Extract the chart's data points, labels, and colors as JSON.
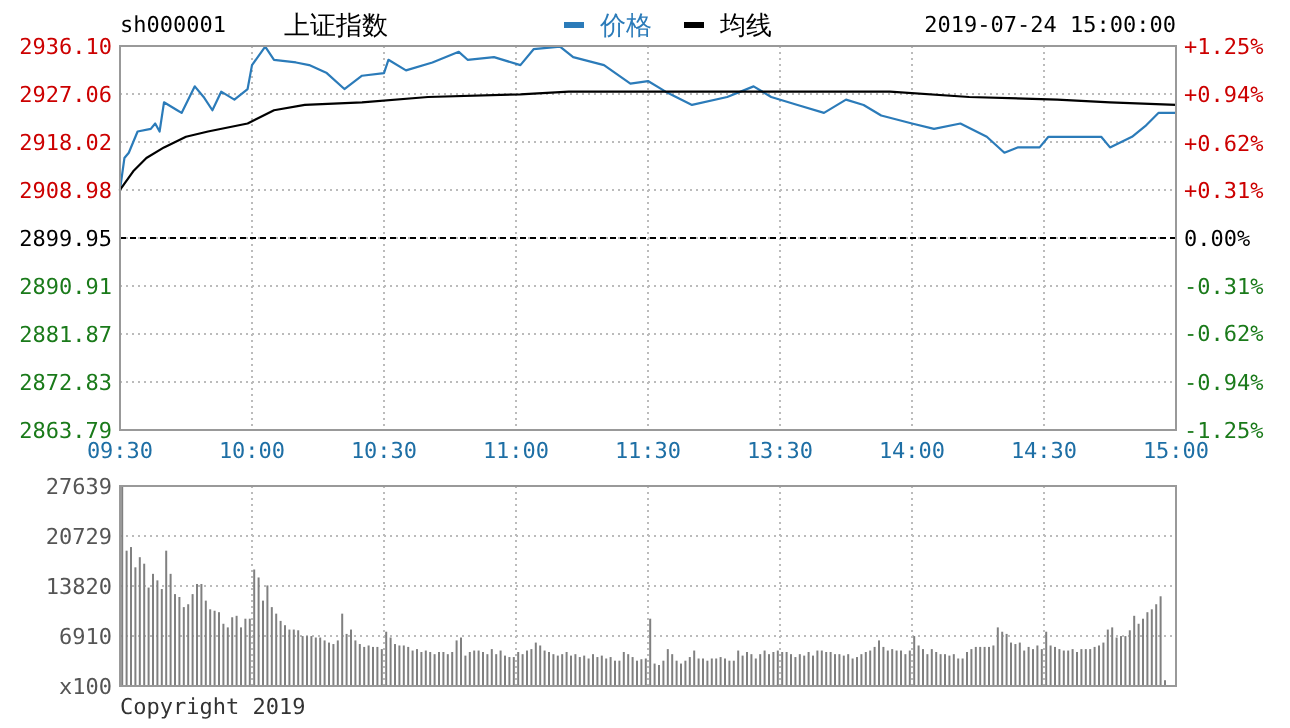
{
  "chart_data": [
    {
      "type": "line",
      "title": "上证指数",
      "subtitle": "sh000001",
      "annotations": [
        "2019-07-24 15:00:00"
      ],
      "categories": [
        "09:30",
        null,
        null,
        null,
        null,
        null,
        null,
        null,
        null,
        null,
        null,
        null,
        null,
        null,
        null,
        null,
        null,
        null,
        null,
        null,
        null,
        null,
        null,
        null,
        null,
        null,
        null,
        null,
        null,
        null,
        "10:00",
        null,
        null,
        null,
        null,
        null,
        null,
        null,
        null,
        null,
        null,
        null,
        null,
        null,
        null,
        null,
        null,
        null,
        null,
        null,
        null,
        null,
        null,
        null,
        null,
        null,
        null,
        null,
        null,
        null,
        "10:30",
        null,
        null,
        null,
        null,
        null,
        null,
        null,
        null,
        null,
        null,
        null,
        null,
        null,
        null,
        null,
        null,
        null,
        null,
        null,
        null,
        null,
        null,
        null,
        null,
        null,
        null,
        null,
        null,
        null,
        "11:00",
        null,
        null,
        null,
        null,
        null,
        null,
        null,
        null,
        null,
        null,
        null,
        null,
        null,
        null,
        null,
        null,
        null,
        null,
        null,
        null,
        null,
        null,
        null,
        null,
        null,
        null,
        null,
        null,
        null,
        "11:30",
        null,
        null,
        null,
        null,
        null,
        null,
        null,
        null,
        null,
        null,
        null,
        null,
        null,
        null,
        null,
        null,
        null,
        null,
        null,
        null,
        null,
        null,
        null,
        null,
        null,
        null,
        null,
        null,
        null,
        "13:30",
        null,
        null,
        null,
        null,
        null,
        null,
        null,
        null,
        null,
        null,
        null,
        null,
        null,
        null,
        null,
        null,
        null,
        null,
        null,
        null,
        null,
        null,
        null,
        null,
        null,
        null,
        null,
        null,
        null,
        "14:00",
        null,
        null,
        null,
        null,
        null,
        null,
        null,
        null,
        null,
        null,
        null,
        null,
        null,
        null,
        null,
        null,
        null,
        null,
        null,
        null,
        null,
        null,
        null,
        null,
        null,
        null,
        null,
        null,
        null,
        "14:30",
        null,
        null,
        null,
        null,
        null,
        null,
        null,
        null,
        null,
        null,
        null,
        null,
        null,
        null,
        null,
        null,
        null,
        null,
        null,
        null,
        null,
        null,
        null,
        null,
        null,
        null,
        null,
        null,
        null,
        "15:00"
      ],
      "ylim": [
        2863.79,
        2936.1
      ],
      "yticks": [
        {
          "value": 2863.79,
          "label": "2863.79"
        },
        {
          "value": 2872.83,
          "label": "2872.83"
        },
        {
          "value": 2881.87,
          "label": "2881.87"
        },
        {
          "value": 2890.91,
          "label": "2890.91"
        },
        {
          "value": 2899.95,
          "label": "2899.95"
        },
        {
          "value": 2908.98,
          "label": "2908.98"
        },
        {
          "value": 2918.02,
          "label": "2918.02"
        },
        {
          "value": 2927.06,
          "label": "2927.06"
        },
        {
          "value": 2936.1,
          "label": "2936.10"
        }
      ],
      "y2lim": [
        -1.25,
        1.25
      ],
      "y2ticks": [
        {
          "value": -1.25,
          "label": "-1.25%"
        },
        {
          "value": -0.94,
          "label": "-0.94%"
        },
        {
          "value": -0.62,
          "label": "-0.62%"
        },
        {
          "value": -0.31,
          "label": "-0.31%"
        },
        {
          "value": 0,
          "label": "0.00%"
        },
        {
          "value": 0.31,
          "label": "+0.31%"
        },
        {
          "value": 0.62,
          "label": "+0.62%"
        },
        {
          "value": 0.94,
          "label": "+0.94%"
        },
        {
          "value": 1.25,
          "label": "+1.25%"
        }
      ],
      "ref_lines": [
        {
          "axis": "y",
          "value": 2899.95,
          "color": "#000000",
          "line_style": "dashed"
        }
      ],
      "grid": true,
      "legend": "top",
      "series": [
        {
          "name": "价格",
          "color": "#2b7bb9",
          "values": [
            2909.0,
            2915.0,
            2916.0,
            null,
            2920.0,
            null,
            null,
            2920.5,
            2921.5,
            2920.0,
            2925.5,
            null,
            null,
            2924.0,
            2923.5,
            null,
            null,
            2928.5,
            null,
            2926.5,
            null,
            2924.0,
            null,
            2927.5,
            null,
            null,
            2926.0,
            null,
            null,
            2928.0,
            2932.5,
            null,
            null,
            2936.0,
            null,
            2933.5,
            null,
            null,
            null,
            null,
            2933.0,
            null,
            null,
            2932.5,
            null,
            null,
            null,
            2931.0,
            null,
            null,
            null,
            2928.0,
            null,
            null,
            null,
            2930.5,
            null,
            null,
            null,
            null,
            2931.0,
            2933.5,
            null,
            null,
            null,
            2931.5,
            null,
            null,
            null,
            null,
            null,
            2933.0,
            null,
            null,
            null,
            null,
            null,
            2935.0,
            null,
            2933.5,
            null,
            null,
            null,
            null,
            null,
            2934.0,
            null,
            null,
            null,
            null,
            null,
            2932.5,
            null,
            null,
            2935.5,
            null,
            null,
            null,
            null,
            null,
            2936.0,
            null,
            null,
            2934.0,
            null,
            null,
            null,
            null,
            null,
            null,
            2932.5,
            null,
            null,
            null,
            null,
            null,
            2929.0,
            null,
            null,
            null,
            2929.5,
            null,
            null,
            null,
            2927.5,
            null,
            null,
            null,
            null,
            null,
            2925.0,
            null,
            null,
            null,
            null,
            null,
            null,
            null,
            2926.5,
            null,
            null,
            null,
            null,
            null,
            2928.5,
            null,
            null,
            null,
            2926.5,
            null,
            null,
            null,
            null,
            null,
            2925.0,
            null,
            null,
            null,
            null,
            null,
            2923.5,
            null,
            null,
            null,
            null,
            2926.0,
            null,
            null,
            null,
            2925.0,
            null,
            null,
            null,
            2923.0,
            null,
            null,
            null,
            null,
            null,
            null,
            2921.5,
            null,
            null,
            null,
            null,
            2920.5,
            null,
            null,
            null,
            null,
            null,
            2921.5,
            null,
            null,
            null,
            null,
            null,
            2919.0,
            null,
            null,
            null,
            2916.0,
            null,
            null,
            2917.0,
            null,
            null,
            null,
            null,
            2917.0,
            null,
            2919.0,
            null,
            null,
            null,
            null,
            null,
            2919.0,
            null,
            null,
            null,
            null,
            null,
            2919.0,
            null,
            2917.0,
            null,
            null,
            null,
            null,
            2919.0,
            null,
            null,
            2921.0,
            null,
            null,
            2923.5,
            null,
            null,
            null,
            2923.5
          ]
        },
        {
          "name": "均线",
          "color": "#000000",
          "values": [
            2909.0,
            null,
            null,
            2912.5,
            null,
            null,
            2915.0,
            null,
            null,
            null,
            2917.0,
            null,
            null,
            null,
            null,
            2919.0,
            null,
            null,
            null,
            null,
            2920.0,
            null,
            null,
            null,
            null,
            null,
            null,
            null,
            null,
            2921.5,
            null,
            null,
            null,
            null,
            null,
            2924.0,
            null,
            null,
            null,
            null,
            null,
            null,
            2925.0,
            null,
            null,
            null,
            null,
            null,
            null,
            null,
            null,
            null,
            null,
            null,
            null,
            2925.5,
            null,
            null,
            null,
            null,
            null,
            null,
            null,
            null,
            null,
            null,
            null,
            null,
            null,
            null,
            2926.5,
            null,
            null,
            null,
            null,
            null,
            null,
            null,
            null,
            null,
            null,
            null,
            null,
            null,
            null,
            null,
            null,
            null,
            null,
            null,
            null,
            2927.0,
            null,
            null,
            null,
            null,
            null,
            null,
            null,
            null,
            null,
            null,
            2927.5,
            null,
            null,
            null,
            null,
            null,
            null,
            null,
            null,
            null,
            null,
            null,
            null,
            null,
            null,
            null,
            null,
            null,
            null,
            null,
            2927.5,
            null,
            null,
            null,
            null,
            null,
            null,
            null,
            null,
            null,
            null,
            null,
            null,
            null,
            null,
            null,
            null,
            null,
            null,
            null,
            null,
            null,
            null,
            null,
            null,
            null,
            null,
            null,
            null,
            2927.5,
            null,
            null,
            null,
            null,
            null,
            null,
            null,
            null,
            null,
            null,
            null,
            null,
            null,
            null,
            null,
            null,
            null,
            null,
            null,
            null,
            null,
            null,
            null,
            2927.5,
            null,
            null,
            null,
            null,
            null,
            null,
            null,
            null,
            null,
            null,
            null,
            null,
            null,
            null,
            null,
            null,
            null,
            2926.5,
            null,
            null,
            null,
            null,
            null,
            null,
            null,
            null,
            null,
            null,
            null,
            null,
            null,
            null,
            null,
            null,
            null,
            null,
            null,
            2926.0,
            null,
            null,
            null,
            null,
            null,
            null,
            null,
            null,
            null,
            null,
            null,
            2925.5,
            null,
            null,
            null,
            null,
            null,
            null,
            null,
            null,
            null,
            null,
            null,
            null,
            null,
            null,
            2925.0
          ]
        }
      ]
    },
    {
      "type": "bar",
      "annotations": [
        "Copyright 2019"
      ],
      "tick_labels": "y",
      "grid": true,
      "color": "#808080",
      "categories": [
        null,
        null,
        null,
        null,
        null,
        null,
        null,
        null,
        null,
        null,
        null,
        null,
        null,
        null,
        null,
        null,
        null,
        null,
        null,
        null,
        null,
        null,
        null,
        null,
        null,
        null,
        null,
        null,
        null,
        null,
        null,
        null,
        null,
        null,
        null,
        null,
        null,
        null,
        null,
        null,
        null,
        null,
        null,
        null,
        null,
        null,
        null,
        null,
        null,
        null,
        null,
        null,
        null,
        null,
        null,
        null,
        null,
        null,
        null,
        null,
        null,
        null,
        null,
        null,
        null,
        null,
        null,
        null,
        null,
        null,
        null,
        null,
        null,
        null,
        null,
        null,
        null,
        null,
        null,
        null,
        null,
        null,
        null,
        null,
        null,
        null,
        null,
        null,
        null,
        null,
        null,
        null,
        null,
        null,
        null,
        null,
        null,
        null,
        null,
        null,
        null,
        null,
        null,
        null,
        null,
        null,
        null,
        null,
        null,
        null,
        null,
        null,
        null,
        null,
        null,
        null,
        null,
        null,
        null,
        null,
        null,
        null,
        null,
        null,
        null,
        null,
        null,
        null,
        null,
        null,
        null,
        null,
        null,
        null,
        null,
        null,
        null,
        null,
        null,
        null,
        null,
        null,
        null,
        null,
        null,
        null,
        null,
        null,
        null,
        null,
        null,
        null,
        null,
        null,
        null,
        null,
        null,
        null,
        null,
        null,
        null,
        null,
        null,
        null,
        null,
        null,
        null,
        null,
        null,
        null,
        null,
        null,
        null,
        null,
        null,
        null,
        null,
        null,
        null,
        null,
        null,
        null,
        null,
        null,
        null,
        null,
        null,
        null,
        null,
        null,
        null,
        null,
        null,
        null,
        null,
        null,
        null,
        null,
        null,
        null,
        null,
        null,
        null,
        null,
        null,
        null,
        null,
        null,
        null,
        null,
        null,
        null,
        null,
        null,
        null,
        null,
        null,
        null,
        null,
        null,
        null,
        null,
        null,
        null,
        null,
        null,
        null,
        null,
        null,
        null,
        null,
        null,
        null,
        null,
        null,
        null,
        null,
        null,
        null,
        null,
        null
      ],
      "ylim": [
        0,
        27639
      ],
      "yticks": [
        {
          "value": 0,
          "label": "x100"
        },
        6910,
        13820,
        20729,
        27639
      ],
      "values": [
        27600,
        18700,
        19200,
        16400,
        17800,
        16900,
        13600,
        15500,
        14600,
        13400,
        18700,
        15500,
        12700,
        12300,
        10900,
        11300,
        12700,
        14100,
        14100,
        11800,
        10600,
        10400,
        10200,
        8600,
        8100,
        9500,
        9700,
        8100,
        9300,
        9300,
        16100,
        15000,
        11800,
        13900,
        10900,
        10000,
        9000,
        8400,
        7800,
        7800,
        7700,
        6900,
        6900,
        6900,
        6700,
        6700,
        6300,
        6000,
        5800,
        6300,
        10000,
        7200,
        7800,
        6300,
        5800,
        5400,
        5600,
        5400,
        5400,
        5100,
        7500,
        6700,
        5800,
        5600,
        5600,
        5400,
        4900,
        5100,
        4700,
        4900,
        4700,
        4400,
        4700,
        4700,
        4400,
        4700,
        6300,
        6700,
        4200,
        4700,
        4900,
        4900,
        4700,
        4400,
        5100,
        4400,
        4900,
        4200,
        4000,
        4000,
        4700,
        4400,
        4900,
        5100,
        6000,
        5600,
        4900,
        4700,
        4400,
        4200,
        4400,
        4700,
        4200,
        4400,
        4000,
        4200,
        3800,
        4400,
        4000,
        4200,
        3800,
        4000,
        3500,
        3500,
        4700,
        4400,
        4000,
        3500,
        3700,
        3800,
        9300,
        3100,
        2900,
        3500,
        5100,
        4400,
        3500,
        3100,
        3500,
        4000,
        4900,
        3800,
        3800,
        3500,
        3800,
        3800,
        4000,
        3800,
        3500,
        3500,
        4900,
        4200,
        4700,
        4400,
        3800,
        4400,
        4900,
        4400,
        4700,
        4900,
        4700,
        4700,
        4400,
        4000,
        4400,
        4200,
        4700,
        4200,
        4900,
        4900,
        4700,
        4700,
        4400,
        4400,
        4200,
        4400,
        3800,
        4000,
        4400,
        4700,
        4900,
        5400,
        6300,
        5400,
        4900,
        5100,
        4900,
        4900,
        4400,
        4900,
        6900,
        5600,
        5100,
        4400,
        5100,
        4700,
        4400,
        4400,
        4200,
        4400,
        3800,
        3800,
        4700,
        5100,
        5400,
        5400,
        5400,
        5400,
        5600,
        8100,
        7500,
        7200,
        6000,
        5800,
        6000,
        4900,
        5400,
        5100,
        5600,
        5100,
        7500,
        5600,
        5400,
        5100,
        4900,
        4900,
        5100,
        4700,
        5100,
        5100,
        5100,
        5400,
        5600,
        6000,
        7800,
        8100,
        6700,
        6900,
        6900,
        7700,
        9700,
        8600,
        9300,
        10200,
        10600,
        11300,
        12400,
        800,
        null,
        null,
        null
      ]
    }
  ]
}
